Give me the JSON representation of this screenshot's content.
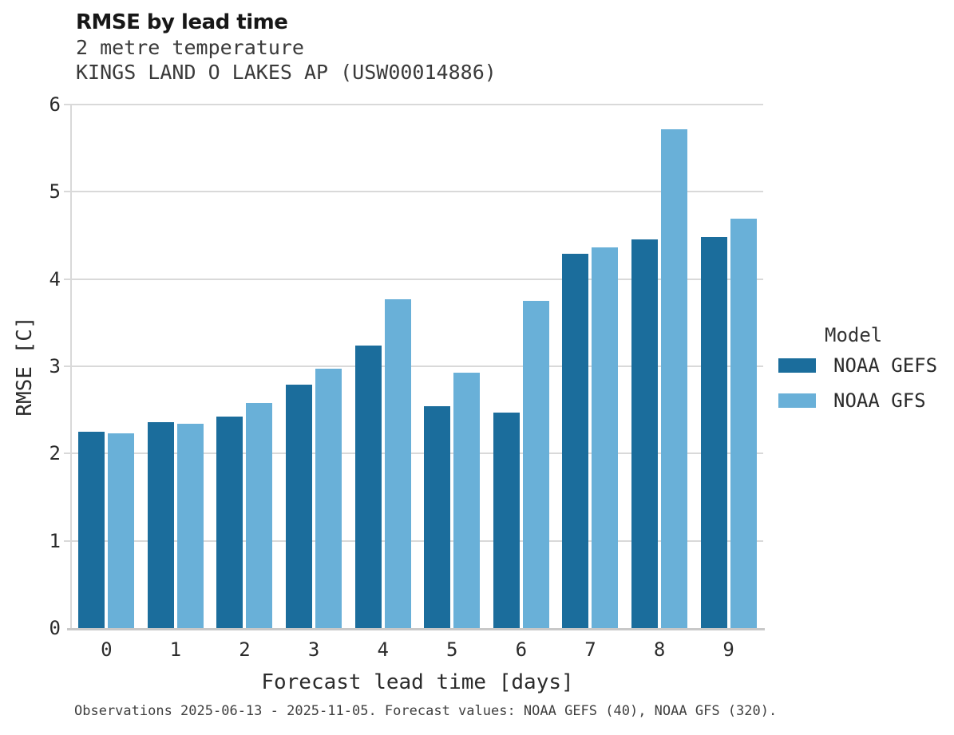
{
  "header": {
    "title": "RMSE by lead time",
    "subtitle_line1": "2 metre temperature",
    "subtitle_line2": "KINGS LAND O LAKES AP (USW00014886)"
  },
  "footer": {
    "note": "Observations 2025-06-13 - 2025-11-05. Forecast values: NOAA GEFS (40), NOAA GFS (320)."
  },
  "legend": {
    "title": "Model",
    "entries": [
      {
        "label": "NOAA GEFS",
        "color": "#1b6d9c"
      },
      {
        "label": "NOAA GFS",
        "color": "#69b0d8"
      }
    ]
  },
  "colors": {
    "gefs_bar": "#1b6d9c",
    "gfs_bar": "#69b0d8",
    "gridline": "#d9d9d9",
    "axis_spine": "#c8c8c8"
  },
  "chart_data": {
    "type": "bar",
    "title": "RMSE by lead time",
    "subtitle": "2 metre temperature — KINGS LAND O LAKES AP (USW00014886)",
    "xlabel": "Forecast lead time [days]",
    "ylabel": "RMSE [C]",
    "ylim": [
      0,
      6
    ],
    "yticks": [
      0,
      1,
      2,
      3,
      4,
      5,
      6
    ],
    "grid": true,
    "legend_position": "right",
    "categories": [
      "0",
      "1",
      "2",
      "3",
      "4",
      "5",
      "6",
      "7",
      "8",
      "9"
    ],
    "series": [
      {
        "name": "NOAA GEFS",
        "color": "#1b6d9c",
        "values": [
          2.25,
          2.36,
          2.42,
          2.79,
          3.24,
          2.54,
          2.47,
          4.29,
          4.45,
          4.48
        ]
      },
      {
        "name": "NOAA GFS",
        "color": "#69b0d8",
        "values": [
          2.23,
          2.34,
          2.58,
          2.97,
          3.77,
          2.93,
          3.75,
          4.36,
          5.72,
          4.69
        ]
      }
    ]
  }
}
